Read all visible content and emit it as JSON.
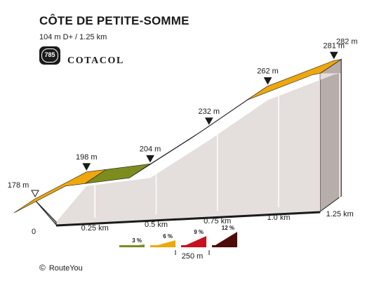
{
  "header": {
    "title": "CÔTE DE PETITE-SOMME",
    "subtitle": "104 m D+ / 1.25 km",
    "badge_number": "785",
    "brand": "COTACOL"
  },
  "footer": {
    "copyright_symbol": "©",
    "credit": "RouteYou"
  },
  "legend": {
    "items": [
      {
        "label": "3 %",
        "color": "#7e8c1e"
      },
      {
        "label": "6 %",
        "color": "#eea70c"
      },
      {
        "label": "9 %",
        "color": "#c8101e"
      },
      {
        "label": "12 %",
        "color": "#4e0b0b"
      }
    ],
    "scale_label": "250 m"
  },
  "chart_data": {
    "type": "area",
    "title": "CÔTE DE PETITE-SOMME",
    "subtitle": "104 m D+ / 1.25 km",
    "xlabel": "",
    "ylabel": "",
    "x_unit": "km",
    "y_unit": "m",
    "xlim": [
      0,
      1.25
    ],
    "ylim": [
      178,
      282
    ],
    "x_ticks": [
      0,
      0.25,
      0.5,
      0.75,
      1.0,
      1.25
    ],
    "x_tick_labels": [
      "0",
      "0.25 km",
      "0.5 km",
      "0.75 km",
      "1.0 km",
      "1.25 km"
    ],
    "points": [
      {
        "x": 0,
        "y": 178,
        "label": "178 m",
        "marker": "hollow"
      },
      {
        "x": 0.21,
        "y": 198,
        "label": "198 m",
        "marker": "filled"
      },
      {
        "x": 0.47,
        "y": 204,
        "label": "204 m",
        "marker": "filled"
      },
      {
        "x": 0.71,
        "y": 232,
        "label": "232 m",
        "marker": "filled"
      },
      {
        "x": 0.95,
        "y": 262,
        "label": "262 m",
        "marker": "filled"
      },
      {
        "x": 1.22,
        "y": 281,
        "label": "281 m",
        "marker": "filled"
      },
      {
        "x": 1.25,
        "y": 282,
        "label": "282 m",
        "marker": "none"
      }
    ],
    "segments": [
      {
        "from": 0,
        "to": 0.29,
        "color": "#eea70c"
      },
      {
        "from": 0.29,
        "to": 0.47,
        "color": "#7e8c1e"
      },
      {
        "from": 0.47,
        "to": 0.71,
        "color": "#c8101e"
      },
      {
        "from": 0.71,
        "to": 0.95,
        "color": "#4e0b0b"
      },
      {
        "from": 0.95,
        "to": 1.25,
        "color": "#eea70c"
      }
    ],
    "grid": true,
    "legend_position": "bottom"
  }
}
